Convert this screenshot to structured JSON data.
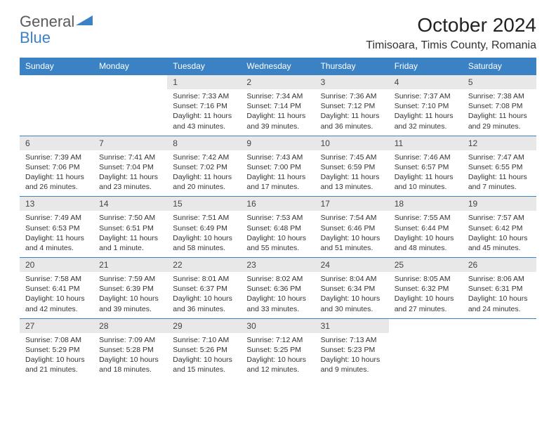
{
  "logo": {
    "word1": "General",
    "word2": "Blue"
  },
  "title": "October 2024",
  "location": "Timisoara, Timis County, Romania",
  "colors": {
    "header_bg": "#3b82c4",
    "header_text": "#ffffff",
    "daynum_bg": "#e8e8e8",
    "border": "#3b82c4",
    "logo_gray": "#5a5a5a",
    "logo_blue": "#3b82c4"
  },
  "fonts": {
    "title_size": 28,
    "location_size": 16,
    "header_size": 12,
    "cell_size": 10.5
  },
  "weekdays": [
    "Sunday",
    "Monday",
    "Tuesday",
    "Wednesday",
    "Thursday",
    "Friday",
    "Saturday"
  ],
  "weeks": [
    [
      null,
      null,
      {
        "n": "1",
        "sr": "Sunrise: 7:33 AM",
        "ss": "Sunset: 7:16 PM",
        "d1": "Daylight: 11 hours",
        "d2": "and 43 minutes."
      },
      {
        "n": "2",
        "sr": "Sunrise: 7:34 AM",
        "ss": "Sunset: 7:14 PM",
        "d1": "Daylight: 11 hours",
        "d2": "and 39 minutes."
      },
      {
        "n": "3",
        "sr": "Sunrise: 7:36 AM",
        "ss": "Sunset: 7:12 PM",
        "d1": "Daylight: 11 hours",
        "d2": "and 36 minutes."
      },
      {
        "n": "4",
        "sr": "Sunrise: 7:37 AM",
        "ss": "Sunset: 7:10 PM",
        "d1": "Daylight: 11 hours",
        "d2": "and 32 minutes."
      },
      {
        "n": "5",
        "sr": "Sunrise: 7:38 AM",
        "ss": "Sunset: 7:08 PM",
        "d1": "Daylight: 11 hours",
        "d2": "and 29 minutes."
      }
    ],
    [
      {
        "n": "6",
        "sr": "Sunrise: 7:39 AM",
        "ss": "Sunset: 7:06 PM",
        "d1": "Daylight: 11 hours",
        "d2": "and 26 minutes."
      },
      {
        "n": "7",
        "sr": "Sunrise: 7:41 AM",
        "ss": "Sunset: 7:04 PM",
        "d1": "Daylight: 11 hours",
        "d2": "and 23 minutes."
      },
      {
        "n": "8",
        "sr": "Sunrise: 7:42 AM",
        "ss": "Sunset: 7:02 PM",
        "d1": "Daylight: 11 hours",
        "d2": "and 20 minutes."
      },
      {
        "n": "9",
        "sr": "Sunrise: 7:43 AM",
        "ss": "Sunset: 7:00 PM",
        "d1": "Daylight: 11 hours",
        "d2": "and 17 minutes."
      },
      {
        "n": "10",
        "sr": "Sunrise: 7:45 AM",
        "ss": "Sunset: 6:59 PM",
        "d1": "Daylight: 11 hours",
        "d2": "and 13 minutes."
      },
      {
        "n": "11",
        "sr": "Sunrise: 7:46 AM",
        "ss": "Sunset: 6:57 PM",
        "d1": "Daylight: 11 hours",
        "d2": "and 10 minutes."
      },
      {
        "n": "12",
        "sr": "Sunrise: 7:47 AM",
        "ss": "Sunset: 6:55 PM",
        "d1": "Daylight: 11 hours",
        "d2": "and 7 minutes."
      }
    ],
    [
      {
        "n": "13",
        "sr": "Sunrise: 7:49 AM",
        "ss": "Sunset: 6:53 PM",
        "d1": "Daylight: 11 hours",
        "d2": "and 4 minutes."
      },
      {
        "n": "14",
        "sr": "Sunrise: 7:50 AM",
        "ss": "Sunset: 6:51 PM",
        "d1": "Daylight: 11 hours",
        "d2": "and 1 minute."
      },
      {
        "n": "15",
        "sr": "Sunrise: 7:51 AM",
        "ss": "Sunset: 6:49 PM",
        "d1": "Daylight: 10 hours",
        "d2": "and 58 minutes."
      },
      {
        "n": "16",
        "sr": "Sunrise: 7:53 AM",
        "ss": "Sunset: 6:48 PM",
        "d1": "Daylight: 10 hours",
        "d2": "and 55 minutes."
      },
      {
        "n": "17",
        "sr": "Sunrise: 7:54 AM",
        "ss": "Sunset: 6:46 PM",
        "d1": "Daylight: 10 hours",
        "d2": "and 51 minutes."
      },
      {
        "n": "18",
        "sr": "Sunrise: 7:55 AM",
        "ss": "Sunset: 6:44 PM",
        "d1": "Daylight: 10 hours",
        "d2": "and 48 minutes."
      },
      {
        "n": "19",
        "sr": "Sunrise: 7:57 AM",
        "ss": "Sunset: 6:42 PM",
        "d1": "Daylight: 10 hours",
        "d2": "and 45 minutes."
      }
    ],
    [
      {
        "n": "20",
        "sr": "Sunrise: 7:58 AM",
        "ss": "Sunset: 6:41 PM",
        "d1": "Daylight: 10 hours",
        "d2": "and 42 minutes."
      },
      {
        "n": "21",
        "sr": "Sunrise: 7:59 AM",
        "ss": "Sunset: 6:39 PM",
        "d1": "Daylight: 10 hours",
        "d2": "and 39 minutes."
      },
      {
        "n": "22",
        "sr": "Sunrise: 8:01 AM",
        "ss": "Sunset: 6:37 PM",
        "d1": "Daylight: 10 hours",
        "d2": "and 36 minutes."
      },
      {
        "n": "23",
        "sr": "Sunrise: 8:02 AM",
        "ss": "Sunset: 6:36 PM",
        "d1": "Daylight: 10 hours",
        "d2": "and 33 minutes."
      },
      {
        "n": "24",
        "sr": "Sunrise: 8:04 AM",
        "ss": "Sunset: 6:34 PM",
        "d1": "Daylight: 10 hours",
        "d2": "and 30 minutes."
      },
      {
        "n": "25",
        "sr": "Sunrise: 8:05 AM",
        "ss": "Sunset: 6:32 PM",
        "d1": "Daylight: 10 hours",
        "d2": "and 27 minutes."
      },
      {
        "n": "26",
        "sr": "Sunrise: 8:06 AM",
        "ss": "Sunset: 6:31 PM",
        "d1": "Daylight: 10 hours",
        "d2": "and 24 minutes."
      }
    ],
    [
      {
        "n": "27",
        "sr": "Sunrise: 7:08 AM",
        "ss": "Sunset: 5:29 PM",
        "d1": "Daylight: 10 hours",
        "d2": "and 21 minutes."
      },
      {
        "n": "28",
        "sr": "Sunrise: 7:09 AM",
        "ss": "Sunset: 5:28 PM",
        "d1": "Daylight: 10 hours",
        "d2": "and 18 minutes."
      },
      {
        "n": "29",
        "sr": "Sunrise: 7:10 AM",
        "ss": "Sunset: 5:26 PM",
        "d1": "Daylight: 10 hours",
        "d2": "and 15 minutes."
      },
      {
        "n": "30",
        "sr": "Sunrise: 7:12 AM",
        "ss": "Sunset: 5:25 PM",
        "d1": "Daylight: 10 hours",
        "d2": "and 12 minutes."
      },
      {
        "n": "31",
        "sr": "Sunrise: 7:13 AM",
        "ss": "Sunset: 5:23 PM",
        "d1": "Daylight: 10 hours",
        "d2": "and 9 minutes."
      },
      null,
      null
    ]
  ]
}
